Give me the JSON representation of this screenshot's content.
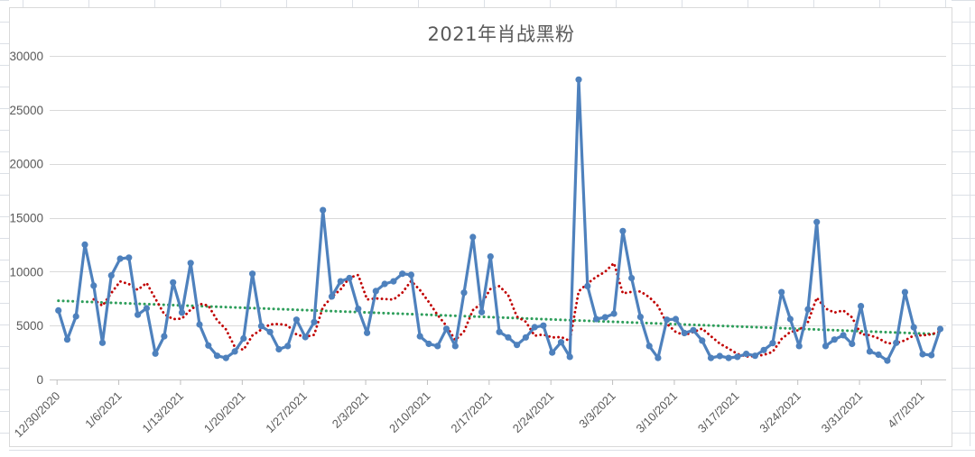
{
  "chart_data": {
    "type": "line",
    "title": "2021年肖战黑粉",
    "xlabel": "",
    "ylabel": "",
    "ylim": [
      0,
      30000
    ],
    "yticks": [
      0,
      5000,
      10000,
      15000,
      20000,
      25000,
      30000
    ],
    "grid": "horizontal",
    "legend": "none",
    "x_tick_labels": [
      "12/30/2020",
      "1/6/2021",
      "1/13/2021",
      "1/20/2021",
      "1/27/2021",
      "2/3/2021",
      "2/10/2021",
      "2/17/2021",
      "2/24/2021",
      "3/3/2021",
      "3/10/2021",
      "3/17/2021",
      "3/24/2021",
      "3/31/2021",
      "4/7/2021"
    ],
    "dates": [
      "12/30/2020",
      "12/31/2020",
      "1/1/2021",
      "1/2/2021",
      "1/3/2021",
      "1/4/2021",
      "1/5/2021",
      "1/6/2021",
      "1/7/2021",
      "1/8/2021",
      "1/9/2021",
      "1/10/2021",
      "1/11/2021",
      "1/12/2021",
      "1/13/2021",
      "1/14/2021",
      "1/15/2021",
      "1/16/2021",
      "1/17/2021",
      "1/18/2021",
      "1/19/2021",
      "1/20/2021",
      "1/21/2021",
      "1/22/2021",
      "1/23/2021",
      "1/24/2021",
      "1/25/2021",
      "1/26/2021",
      "1/27/2021",
      "1/28/2021",
      "1/29/2021",
      "1/30/2021",
      "1/31/2021",
      "2/1/2021",
      "2/2/2021",
      "2/3/2021",
      "2/4/2021",
      "2/5/2021",
      "2/6/2021",
      "2/7/2021",
      "2/8/2021",
      "2/9/2021",
      "2/10/2021",
      "2/11/2021",
      "2/12/2021",
      "2/13/2021",
      "2/14/2021",
      "2/15/2021",
      "2/16/2021",
      "2/17/2021",
      "2/18/2021",
      "2/19/2021",
      "2/20/2021",
      "2/21/2021",
      "2/22/2021",
      "2/23/2021",
      "2/24/2021",
      "2/25/2021",
      "2/26/2021",
      "2/27/2021",
      "2/28/2021",
      "3/1/2021",
      "3/2/2021",
      "3/3/2021",
      "3/4/2021",
      "3/5/2021",
      "3/6/2021",
      "3/7/2021",
      "3/8/2021",
      "3/9/2021",
      "3/10/2021",
      "3/11/2021",
      "3/12/2021",
      "3/13/2021",
      "3/14/2021",
      "3/15/2021",
      "3/16/2021",
      "3/17/2021",
      "3/18/2021",
      "3/19/2021",
      "3/20/2021",
      "3/21/2021",
      "3/22/2021",
      "3/23/2021",
      "3/24/2021",
      "3/25/2021",
      "3/26/2021",
      "3/27/2021",
      "3/28/2021",
      "3/29/2021",
      "3/30/2021",
      "3/31/2021",
      "4/1/2021",
      "4/2/2021",
      "4/3/2021",
      "4/4/2021",
      "4/5/2021",
      "4/6/2021",
      "4/7/2021",
      "4/8/2021",
      "4/9/2021"
    ],
    "series": [
      {
        "name": "daily-values",
        "style": "solid-line-with-markers",
        "color": "#4E81BD",
        "values": [
          6400,
          3700,
          5850,
          12500,
          8700,
          3400,
          9640,
          11200,
          11300,
          6000,
          6600,
          2400,
          4000,
          9000,
          6200,
          10800,
          5100,
          3150,
          2200,
          2000,
          2600,
          3800,
          9800,
          4950,
          4400,
          2800,
          3100,
          5540,
          3930,
          5320,
          15700,
          7700,
          9100,
          9400,
          6540,
          4320,
          8200,
          8860,
          9100,
          9800,
          9700,
          4000,
          3300,
          3100,
          4700,
          3100,
          8050,
          13200,
          6240,
          11400,
          4400,
          3900,
          3200,
          3900,
          4850,
          5000,
          2500,
          3450,
          2100,
          27800,
          8660,
          5600,
          5770,
          6100,
          13760,
          9400,
          5800,
          3100,
          2000,
          5540,
          5600,
          4300,
          4570,
          3600,
          2000,
          2170,
          2000,
          2100,
          2370,
          2200,
          2730,
          3370,
          8100,
          5600,
          3100,
          6500,
          14600,
          3100,
          3700,
          4100,
          3300,
          6800,
          2600,
          2300,
          1750,
          3400,
          8100,
          4840,
          2340,
          2260,
          4680
        ]
      },
      {
        "name": "moving-average",
        "style": "dotted-line",
        "color": "#C00000",
        "derived": "trailing-moving-average-of-daily-values",
        "period": 5
      },
      {
        "name": "linear-trend",
        "style": "dotted-line",
        "color": "#2E9E5B",
        "trend_start_value": 7300,
        "trend_end_value": 4200
      }
    ],
    "colors": {
      "series": "#4E81BD",
      "moving_average": "#C00000",
      "trend": "#2E9E5B",
      "gridline": "#D9D9D9",
      "axis_text": "#595959",
      "sheet_gridline": "#DCE0E6"
    }
  }
}
